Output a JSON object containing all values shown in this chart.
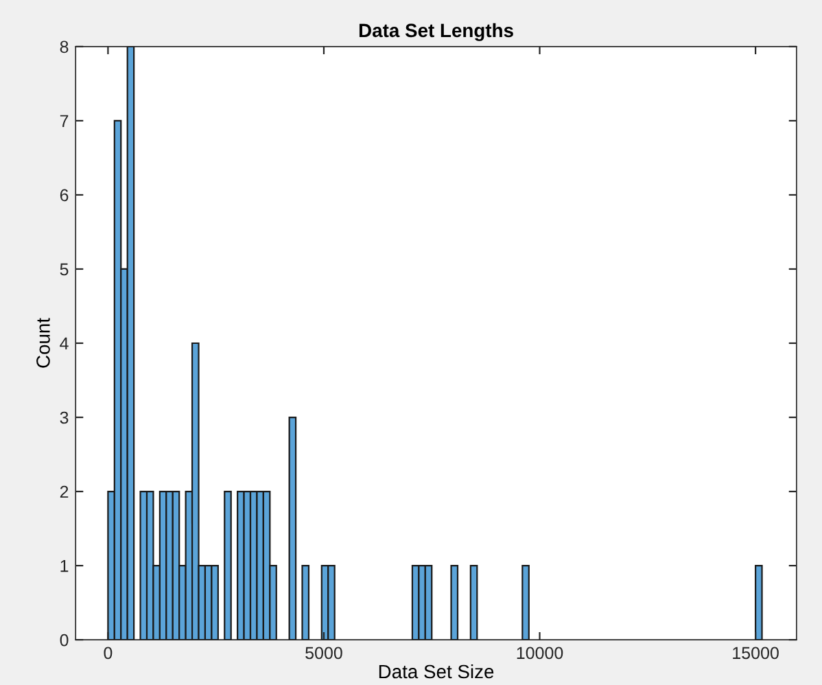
{
  "chart_data": {
    "type": "histogram",
    "title": "Data Set Lengths",
    "xlabel": "Data Set Size",
    "ylabel": "Count",
    "bins": [
      0,
      150,
      300,
      450,
      600,
      750,
      900,
      1050,
      1200,
      1350,
      1500,
      1650,
      1800,
      1950,
      2100,
      2250,
      2400,
      2550,
      2700,
      2850,
      3000,
      3150,
      3300,
      3450,
      3600,
      3750,
      3900,
      4050,
      4200,
      4350,
      4500,
      4650,
      4800,
      4950,
      5100,
      5250,
      5400,
      5550,
      5700,
      5850,
      6000,
      6150,
      6300,
      6450,
      6600,
      6750,
      6900,
      7050,
      7200,
      7350,
      7500,
      7650,
      7800,
      7950,
      8100,
      8250,
      8400,
      8550,
      8700,
      8850,
      9000,
      9150,
      9300,
      9450,
      9600,
      9750,
      9900,
      10050,
      10200,
      10350,
      10500,
      10650,
      10800,
      10950,
      11100,
      11250,
      11400,
      11550,
      11700,
      11850,
      12000,
      12150,
      12300,
      12450,
      12600,
      12750,
      12900,
      13050,
      13200,
      13350,
      13500,
      13650,
      13800,
      13950,
      14100,
      14250,
      14400,
      14550,
      14700,
      14850,
      15000,
      15150
    ],
    "values": [
      2,
      7,
      5,
      8,
      0,
      2,
      2,
      1,
      2,
      2,
      2,
      1,
      2,
      4,
      1,
      1,
      1,
      0,
      2,
      0,
      2,
      2,
      2,
      2,
      2,
      1,
      0,
      0,
      3,
      0,
      1,
      0,
      0,
      1,
      1,
      0,
      0,
      0,
      0,
      0,
      0,
      0,
      0,
      0,
      0,
      0,
      0,
      1,
      1,
      1,
      0,
      0,
      0,
      1,
      0,
      0,
      1,
      0,
      0,
      0,
      0,
      0,
      0,
      0,
      1,
      0,
      0,
      0,
      0,
      0,
      0,
      0,
      0,
      0,
      0,
      0,
      0,
      0,
      0,
      0,
      0,
      0,
      0,
      0,
      0,
      0,
      0,
      0,
      0,
      0,
      0,
      0,
      0,
      0,
      0,
      0,
      0,
      0,
      0,
      0,
      1
    ],
    "color": "#5ba4d9",
    "xlim": [
      -750,
      15950
    ],
    "ylim": [
      0,
      8
    ],
    "xticks": [
      0,
      5000,
      10000,
      15000
    ],
    "yticks": [
      0,
      1,
      2,
      3,
      4,
      5,
      6,
      7,
      8
    ],
    "grid": false
  }
}
